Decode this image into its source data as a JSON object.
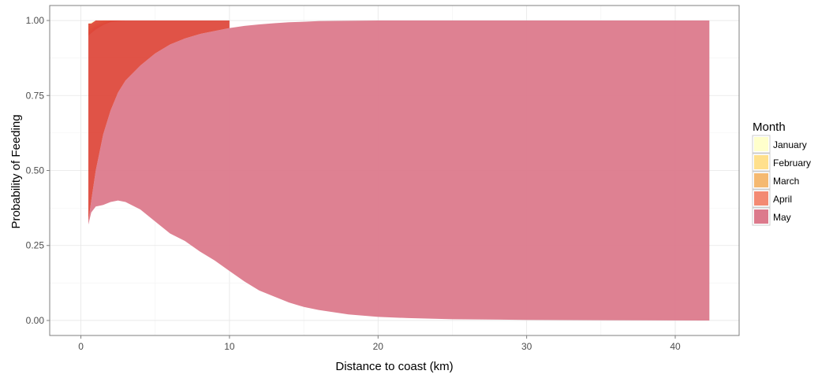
{
  "chart_data": {
    "type": "area",
    "title": "",
    "xlabel": "Distance to coast (km)",
    "ylabel": "Probability of Feeding",
    "xlim": [
      -2.1,
      44.3
    ],
    "ylim": [
      -0.05,
      1.05
    ],
    "x_ticks": [
      0,
      10,
      20,
      30,
      40
    ],
    "y_ticks": [
      0.0,
      0.25,
      0.5,
      0.75,
      1.0
    ],
    "y_tick_labels": [
      "0.00",
      "0.25",
      "0.50",
      "0.75",
      "1.00"
    ],
    "grid": true,
    "legend": {
      "title": "Month",
      "position": "right"
    },
    "series": [
      {
        "name": "January",
        "color": "#ffffcc",
        "x": [
          0.5,
          1.0,
          1.5,
          2.0,
          43.0
        ],
        "lower": [
          0.98,
          0.99,
          1.0,
          1.0,
          1.0
        ],
        "upper": [
          0.99,
          1.0,
          1.0,
          1.0,
          1.0
        ]
      },
      {
        "name": "February",
        "color": "#ffe08c",
        "x": [
          0.5,
          1.0,
          1.5,
          2.0,
          43.0
        ],
        "lower": [
          0.97,
          0.985,
          0.995,
          1.0,
          1.0
        ],
        "upper": [
          0.98,
          0.99,
          1.0,
          1.0,
          1.0
        ]
      },
      {
        "name": "March",
        "color": "#f5b971",
        "x": [
          0.5,
          1.0,
          1.5,
          2.0,
          43.0
        ],
        "lower": [
          0.96,
          0.98,
          0.99,
          1.0,
          1.0
        ],
        "upper": [
          0.97,
          0.985,
          0.995,
          1.0,
          1.0
        ]
      },
      {
        "name": "April",
        "color": "#f38a73",
        "x": [
          0.5,
          1.0,
          1.5,
          2.0,
          3.0,
          43.0
        ],
        "lower": [
          0.95,
          0.97,
          0.985,
          0.995,
          1.0,
          1.0
        ],
        "upper": [
          0.96,
          0.98,
          0.99,
          1.0,
          1.0,
          1.0
        ]
      },
      {
        "name": "May",
        "color": "#dc7a8c",
        "x": [
          0.5,
          0.7,
          1.0,
          1.5,
          2.0,
          2.5,
          3.0,
          4.0,
          5.0,
          6.0,
          7.0,
          8.0,
          9.0,
          10.0,
          11.0,
          12.0,
          13.0,
          14.0,
          15.0,
          16.0,
          18.0,
          20.0,
          22.0,
          25.0,
          30.0,
          35.0,
          42.3
        ],
        "lower": [
          0.32,
          0.36,
          0.38,
          0.385,
          0.395,
          0.4,
          0.395,
          0.37,
          0.33,
          0.29,
          0.265,
          0.23,
          0.2,
          0.165,
          0.13,
          0.1,
          0.08,
          0.06,
          0.045,
          0.035,
          0.02,
          0.012,
          0.008,
          0.004,
          0.002,
          0.001,
          0.0
        ],
        "upper": [
          0.33,
          0.4,
          0.5,
          0.62,
          0.7,
          0.76,
          0.8,
          0.85,
          0.89,
          0.92,
          0.94,
          0.955,
          0.965,
          0.975,
          0.982,
          0.987,
          0.991,
          0.994,
          0.996,
          0.998,
          0.999,
          1.0,
          1.0,
          1.0,
          1.0,
          1.0,
          1.0
        ]
      }
    ],
    "overlay": {
      "color": "#dd4033",
      "x": [
        0.5,
        0.7,
        1.0,
        1.5,
        2.0,
        2.5,
        3.0,
        4.0,
        5.0,
        6.0,
        7.0,
        8.0,
        9.0,
        10.0
      ],
      "lower": [
        0.33,
        0.4,
        0.5,
        0.62,
        0.7,
        0.76,
        0.8,
        0.85,
        0.89,
        0.92,
        0.94,
        0.955,
        0.965,
        0.975
      ],
      "upper": [
        0.99,
        0.99,
        1.0,
        1.0,
        1.0,
        1.0,
        1.0,
        1.0,
        1.0,
        1.0,
        1.0,
        1.0,
        1.0,
        1.0
      ]
    }
  }
}
